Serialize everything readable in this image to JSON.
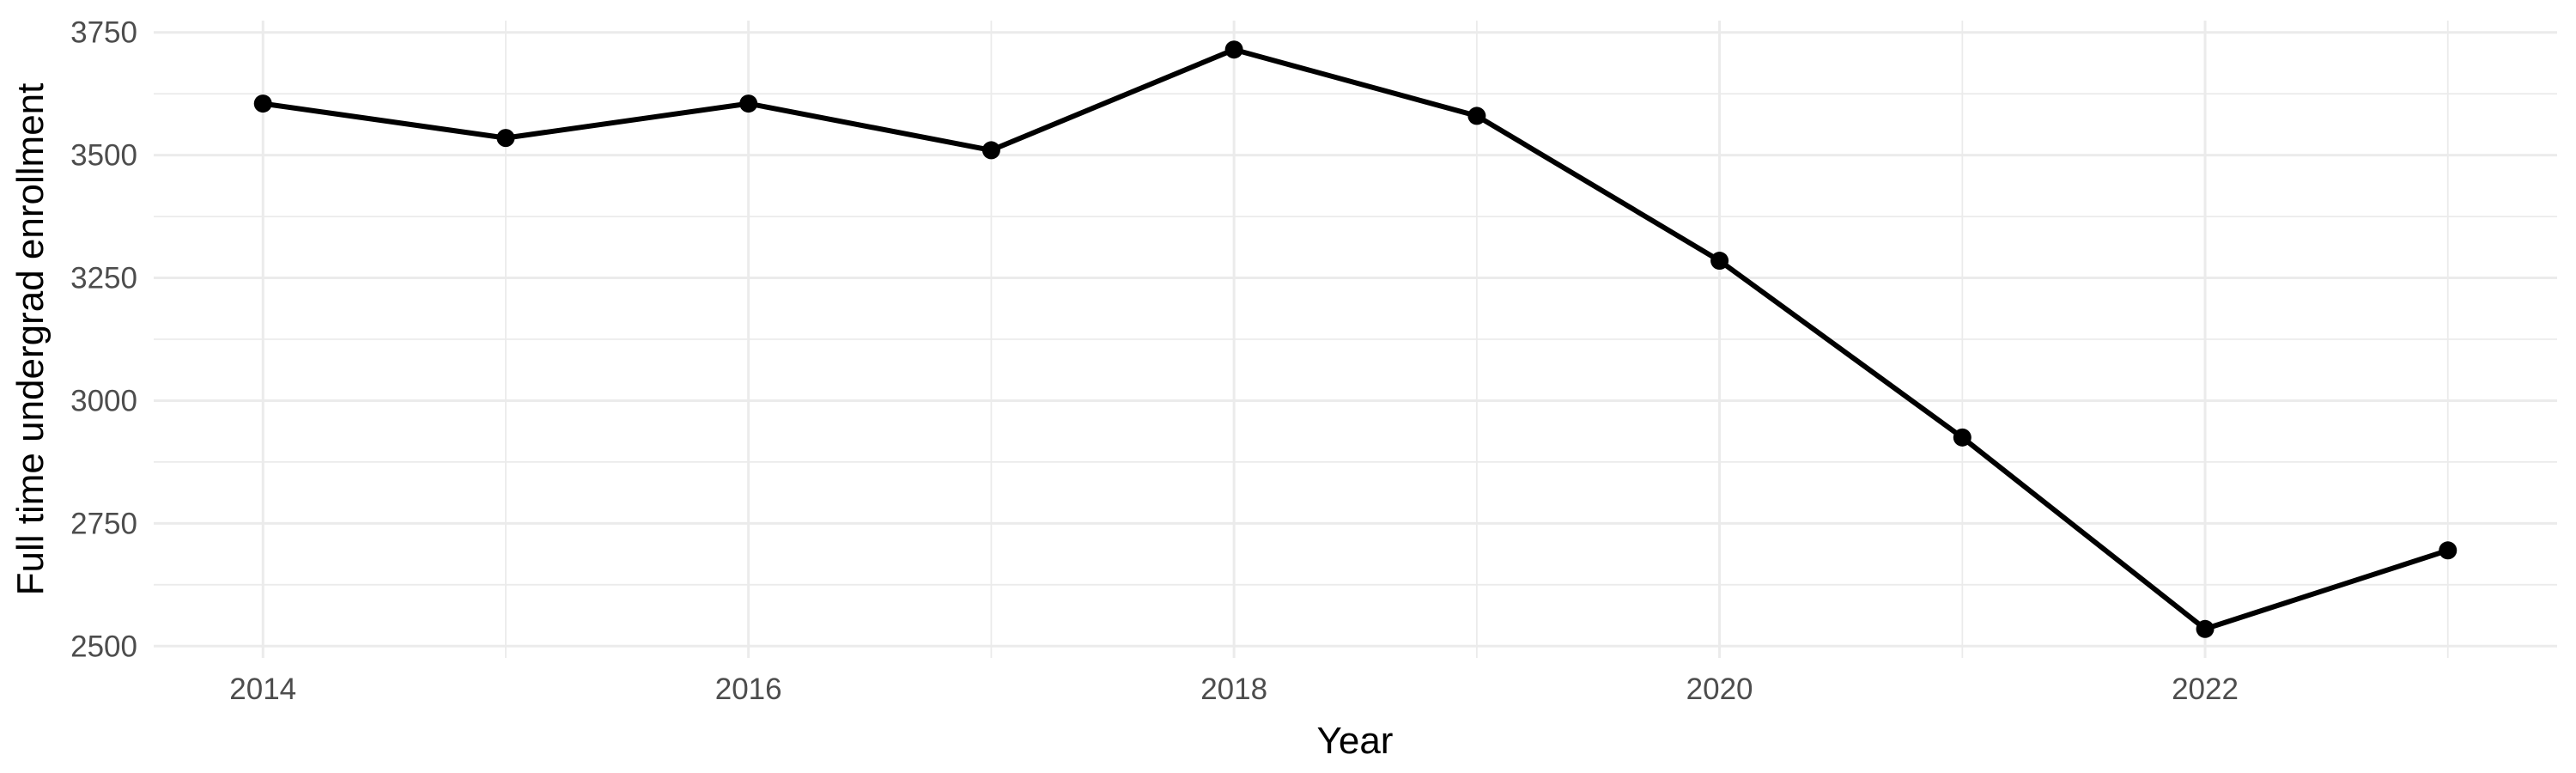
{
  "page": {
    "background_color": "#FFFFFF",
    "description_title": ""
  },
  "chart_data": {
    "type": "line",
    "title": "",
    "xlabel": "Year",
    "ylabel": "Full time undergrad enrollment",
    "x": [
      2014,
      2015,
      2016,
      2017,
      2018,
      2019,
      2020,
      2021,
      2022,
      2023
    ],
    "series": [
      {
        "name": "Full time undergrad enrollment",
        "values": [
          3605,
          3535,
          3605,
          3510,
          3715,
          3580,
          3285,
          2925,
          2535,
          2695
        ]
      }
    ],
    "xlim": [
      2013.55,
      2023.45
    ],
    "ylim": [
      2476,
      3774
    ],
    "x_major_ticks": [
      2014,
      2016,
      2018,
      2020,
      2022
    ],
    "x_minor_gridlines": [
      2015,
      2017,
      2019,
      2021,
      2023
    ],
    "y_major_ticks": [
      2500,
      2750,
      3000,
      3250,
      3500,
      3750
    ],
    "y_minor_gridlines": [
      2625,
      2875,
      3125,
      3375,
      3625
    ],
    "grid": true,
    "legend_position": "none",
    "marker": "circle"
  },
  "styles": {
    "line_color": "#000000",
    "point_color": "#000000",
    "grid_color": "#EBEBEB",
    "tick_label_color": "#4D4D4D",
    "axis_title_color": "#000000",
    "background": "#FFFFFF"
  }
}
